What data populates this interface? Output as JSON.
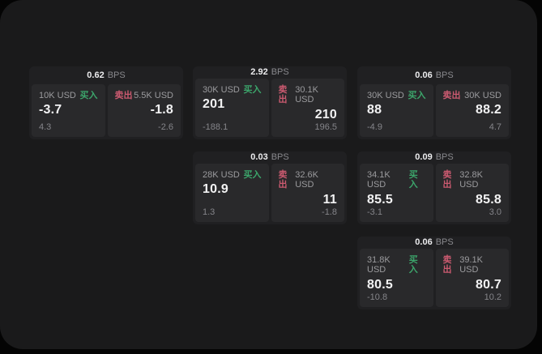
{
  "page": {
    "background": "#040404",
    "panel_background": "#1a1a1b"
  },
  "labels": {
    "bps_unit": "BPS",
    "buy": "买入",
    "sell": "卖出"
  },
  "colors": {
    "buy_green": "#3ca56b",
    "sell_red": "#cb5a70"
  },
  "cards": [
    {
      "row": 0,
      "col": 0,
      "bps_value": "0.62",
      "buy": {
        "amount": "10K USD",
        "value": "-3.7",
        "change": "4.3"
      },
      "sell": {
        "amount": "5.5K USD",
        "value": "-1.8",
        "change": "-2.6"
      }
    },
    {
      "row": 0,
      "col": 1,
      "bps_value": "2.92",
      "buy": {
        "amount": "30K USD",
        "value": "201",
        "change": "-188.1"
      },
      "sell": {
        "amount": "30.1K USD",
        "value": "210",
        "change": "196.5"
      }
    },
    {
      "row": 0,
      "col": 2,
      "bps_value": "0.06",
      "buy": {
        "amount": "30K USD",
        "value": "88",
        "change": "-4.9"
      },
      "sell": {
        "amount": "30K USD",
        "value": "88.2",
        "change": "4.7"
      }
    },
    {
      "row": 1,
      "col": 1,
      "bps_value": "0.03",
      "buy": {
        "amount": "28K USD",
        "value": "10.9",
        "change": "1.3"
      },
      "sell": {
        "amount": "32.6K USD",
        "value": "11",
        "change": "-1.8"
      }
    },
    {
      "row": 1,
      "col": 2,
      "bps_value": "0.09",
      "buy": {
        "amount": "34.1K USD",
        "value": "85.5",
        "change": "-3.1"
      },
      "sell": {
        "amount": "32.8K USD",
        "value": "85.8",
        "change": "3.0"
      }
    },
    {
      "row": 2,
      "col": 2,
      "bps_value": "0.06",
      "buy": {
        "amount": "31.8K USD",
        "value": "80.5",
        "change": "-10.8"
      },
      "sell": {
        "amount": "39.1K USD",
        "value": "80.7",
        "change": "10.2"
      }
    }
  ]
}
